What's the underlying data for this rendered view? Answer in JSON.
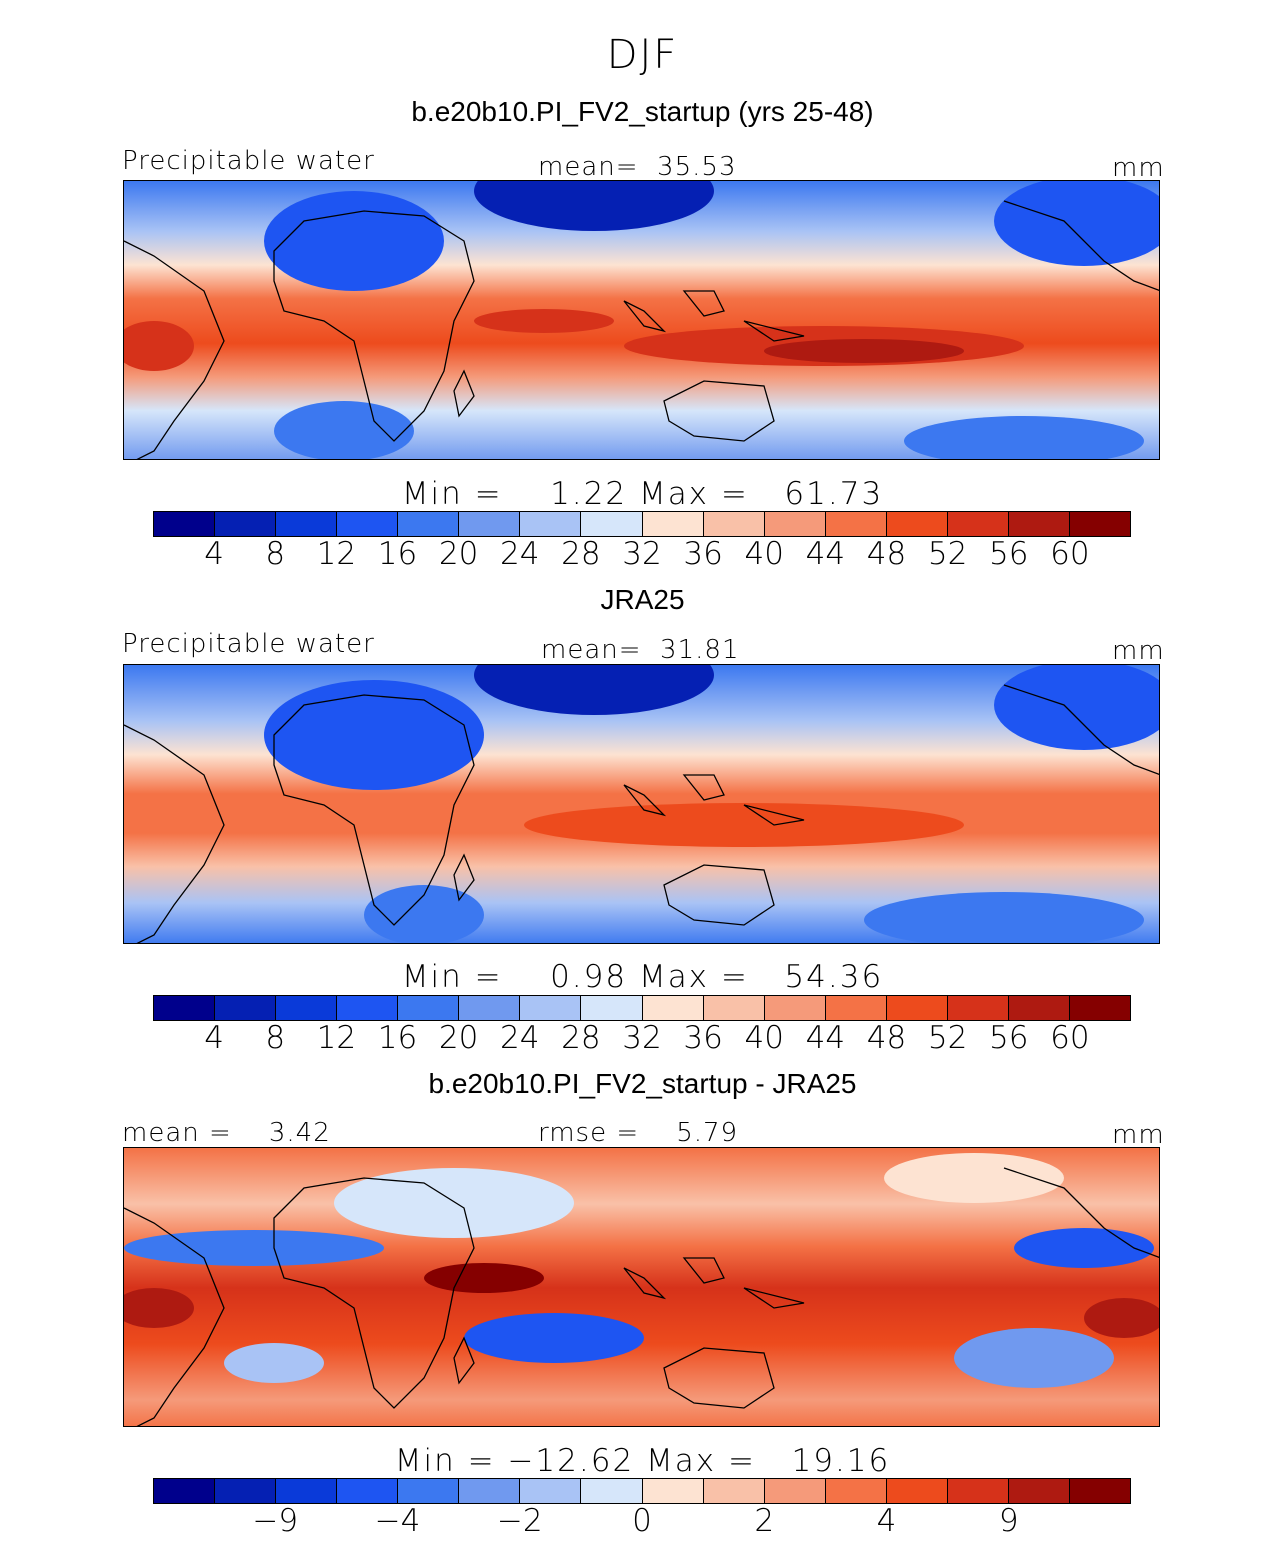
{
  "season": "DJF",
  "panels": [
    {
      "title": "b.e20b10.PI_FV2_startup (yrs 25-48)",
      "left_label": "Precipitable water",
      "center_label": "mean=  35.53",
      "right_label": "mm",
      "minmax": "Min =    1.22 Max =   61.73",
      "ticks": [
        "4",
        "8",
        "12",
        "16",
        "20",
        "24",
        "28",
        "32",
        "36",
        "40",
        "44",
        "48",
        "52",
        "56",
        "60"
      ]
    },
    {
      "title": "JRA25",
      "left_label": "Precipitable water",
      "center_label": "mean=  31.81",
      "right_label": "mm",
      "minmax": "Min =    0.98 Max =   54.36",
      "ticks": [
        "4",
        "8",
        "12",
        "16",
        "20",
        "24",
        "28",
        "32",
        "36",
        "40",
        "44",
        "48",
        "52",
        "56",
        "60"
      ]
    },
    {
      "title": "b.e20b10.PI_FV2_startup - JRA25",
      "left_label": "mean =    3.42",
      "center_label": "rmse =    5.79",
      "right_label": "mm",
      "minmax": "Min = −12.62 Max =   19.16",
      "ticks": [
        "−9",
        "−4",
        "−2",
        "0",
        "2",
        "4",
        "9"
      ]
    }
  ],
  "colors": {
    "palette": [
      "#00008c",
      "#0520b3",
      "#0a3ad9",
      "#1e55f2",
      "#3c78f0",
      "#7099ef",
      "#a9c3f5",
      "#d6e6fa",
      "#fde3d2",
      "#f9c1a8",
      "#f59a7a",
      "#f47246",
      "#ed4b1d",
      "#d6321a",
      "#ae1a11",
      "#850000"
    ]
  }
}
